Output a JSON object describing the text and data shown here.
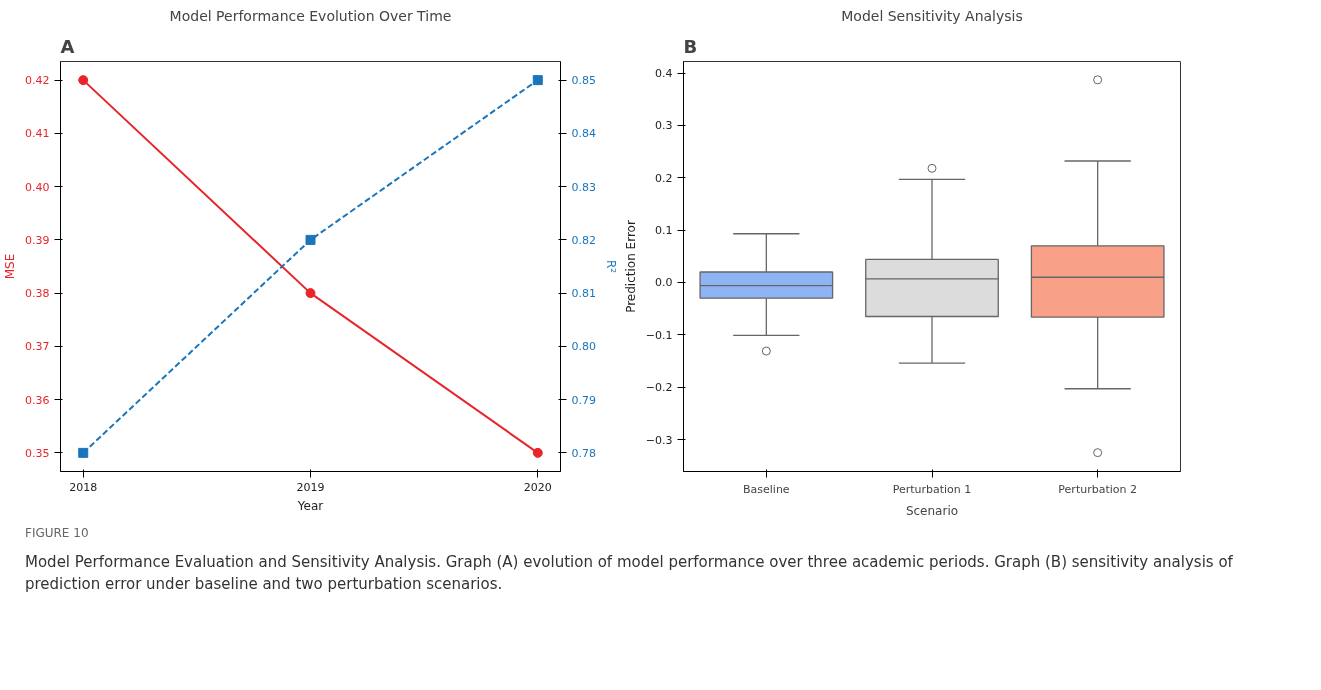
{
  "chart_data": [
    {
      "type": "line",
      "title": "Model Performance Evolution Over Time",
      "xlabel": "Year",
      "ylabel": "MSE",
      "y2label": "R²",
      "annotations": [
        "A"
      ],
      "x": [
        2018,
        2019,
        2020
      ],
      "xlim": [
        2017.9,
        2020.1
      ],
      "xticks": [
        2018,
        2019,
        2020
      ],
      "ylim": [
        0.3465,
        0.4235
      ],
      "yticks": [
        0.35,
        0.36,
        0.37,
        0.38,
        0.39,
        {
          "value": 0.4,
          "label": "0.40"
        },
        0.41,
        0.42
      ],
      "y2lim": [
        0.7765,
        0.8535
      ],
      "y2ticks": [
        0.78,
        0.79,
        {
          "value": 0.8,
          "label": "0.80"
        },
        0.81,
        0.82,
        0.83,
        0.84,
        0.85
      ],
      "grid": false,
      "series": [
        {
          "color": "#e8252a",
          "values": [
            0.42,
            0.38,
            0.35
          ],
          "marker": "circle",
          "line_style": "solid"
        },
        {
          "color": "#1a75bb",
          "values": [
            0.78,
            0.82,
            0.85
          ],
          "marker": "square",
          "line_style": "dashed",
          "axis": "y2"
        }
      ]
    },
    {
      "type": "box",
      "title": "Model Sensitivity Analysis",
      "xlabel": "Scenario",
      "ylabel": "Prediction Error",
      "annotations": [
        "B",
        "FIGURE 10",
        "Model Performance Evaluation and Sensitivity Analysis. Graph (A) evolution of model performance over three academic periods. Graph (B) sensitivity analysis of prediction error under baseline and two perturbation scenarios."
      ],
      "categories": [
        "Baseline",
        "Perturbation 1",
        "Perturbation 2"
      ],
      "ylim": [
        -0.361,
        0.422
      ],
      "yticks": [
        {
          "value": -0.3,
          "label": "−0.3"
        },
        {
          "value": -0.2,
          "label": "−0.2"
        },
        {
          "value": -0.1,
          "label": "−0.1"
        },
        {
          "value": 0.0,
          "label": "0.0"
        },
        0.1,
        0.2,
        0.3,
        0.4
      ],
      "grid": false,
      "colors": [
        "#8fb4f4",
        "#dcdcdc",
        "#f9a088"
      ],
      "boxes": [
        {
          "low": -0.101,
          "q1": -0.03,
          "median": -0.006,
          "q3": 0.02,
          "high": 0.093,
          "outliers": [
            -0.131
          ]
        },
        {
          "low": -0.154,
          "q1": -0.065,
          "median": 0.007,
          "q3": 0.044,
          "high": 0.197,
          "outliers": [
            0.218
          ]
        },
        {
          "low": -0.203,
          "q1": -0.066,
          "median": 0.01,
          "q3": 0.07,
          "high": 0.232,
          "outliers": [
            0.387,
            -0.325
          ]
        }
      ]
    }
  ]
}
